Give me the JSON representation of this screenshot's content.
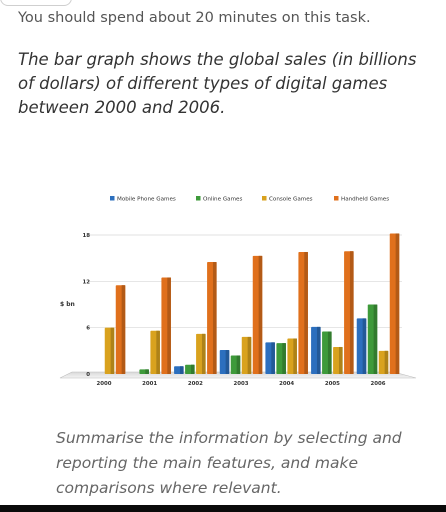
{
  "instruction": "You should spend about 20 minutes on this task.",
  "task_prompt": "The bar graph shows the global sales (in billions of dollars) of different types of digital games between 2000 and 2006.",
  "summary_prompt": "Summarise the information by selecting and reporting the main features, and make comparisons where relevant.",
  "chart_data": {
    "type": "bar",
    "title": "",
    "xlabel": "",
    "ylabel": "$ bn",
    "ylim": [
      0,
      18
    ],
    "yticks": [
      0,
      6,
      12,
      18
    ],
    "grid": true,
    "legend_position": "top",
    "categories": [
      "2000",
      "2001",
      "2002",
      "2003",
      "2004",
      "2005",
      "2006"
    ],
    "series": [
      {
        "name": "Mobile Phone Games",
        "color": "#2c6fbe",
        "values": [
          0,
          0,
          1.0,
          3.1,
          4.1,
          6.1,
          7.2
        ]
      },
      {
        "name": "Online Games",
        "color": "#3e9a3a",
        "values": [
          0,
          0.6,
          1.2,
          2.4,
          4.0,
          5.5,
          9.0
        ]
      },
      {
        "name": "Console Games",
        "color": "#d9a21e",
        "values": [
          6.0,
          5.6,
          5.2,
          4.8,
          4.6,
          3.5,
          3.0
        ]
      },
      {
        "name": "Handheld Games",
        "color": "#e0701c",
        "values": [
          11.5,
          12.5,
          14.5,
          15.3,
          15.8,
          15.9,
          18.2
        ]
      }
    ]
  }
}
